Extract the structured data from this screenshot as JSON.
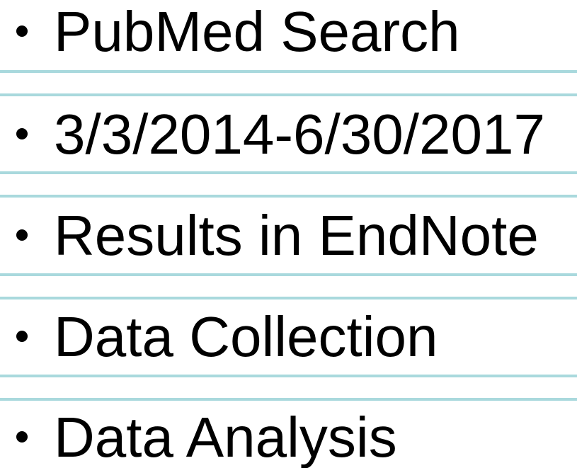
{
  "items": [
    "PubMed Search",
    "3/3/2014-6/30/2017",
    "Results in EndNote",
    "Data Collection",
    "Data Analysis"
  ]
}
